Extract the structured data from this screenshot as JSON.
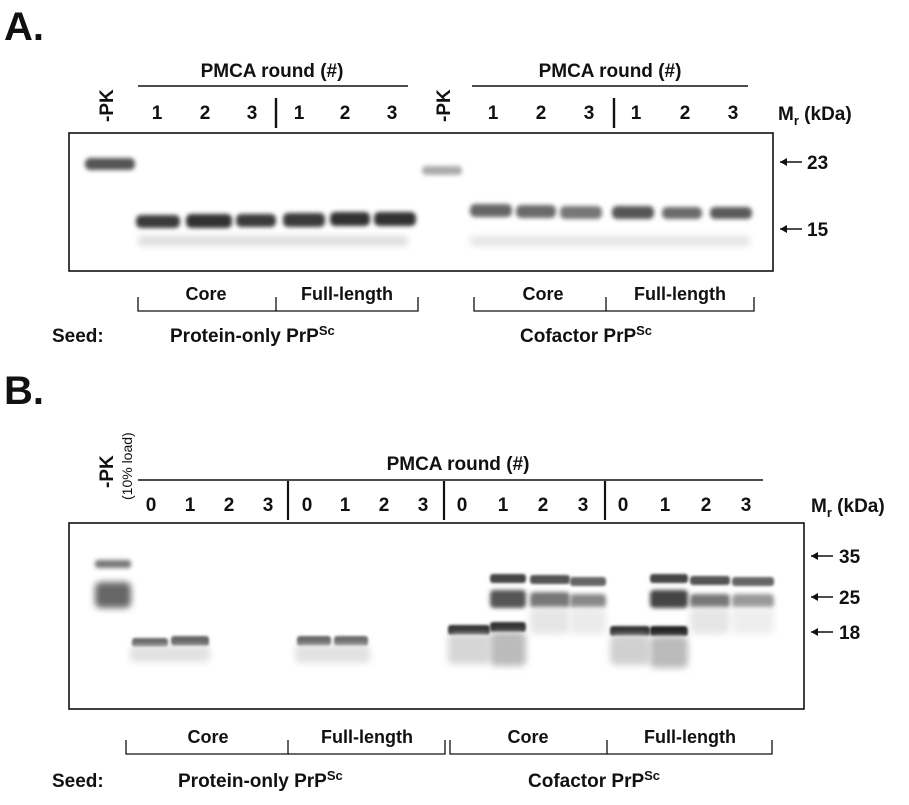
{
  "panel_a": {
    "label": "A.",
    "pmca_label": "PMCA round (#)",
    "minus_pk": "-PK",
    "lanes_left": [
      "1",
      "2",
      "3",
      "1",
      "2",
      "3"
    ],
    "lanes_right": [
      "1",
      "2",
      "3",
      "1",
      "2",
      "3"
    ],
    "mr_label": "M",
    "mr_sub": "r",
    "mr_unit": " (kDa)",
    "markers": [
      "23",
      "15"
    ],
    "groups": [
      "Core",
      "Full-length",
      "Core",
      "Full-length"
    ],
    "seed_label": "Seed:",
    "seed_left": "Protein-only PrP",
    "seed_right": "Cofactor PrP",
    "seed_sup": "Sc"
  },
  "panel_b": {
    "label": "B.",
    "pmca_label": "PMCA round (#)",
    "minus_pk": "-PK",
    "load_note": "(10% load)",
    "lanes": [
      "0",
      "1",
      "2",
      "3",
      "0",
      "1",
      "2",
      "3",
      "0",
      "1",
      "2",
      "3",
      "0",
      "1",
      "2",
      "3"
    ],
    "mr_label": "M",
    "mr_sub": "r",
    "mr_unit": " (kDa)",
    "markers": [
      "35",
      "25",
      "18"
    ],
    "groups": [
      "Core",
      "Full-length",
      "Core",
      "Full-length"
    ],
    "seed_label": "Seed:",
    "seed_left": "Protein-only PrP",
    "seed_right": "Cofactor PrP",
    "seed_sup": "Sc"
  }
}
